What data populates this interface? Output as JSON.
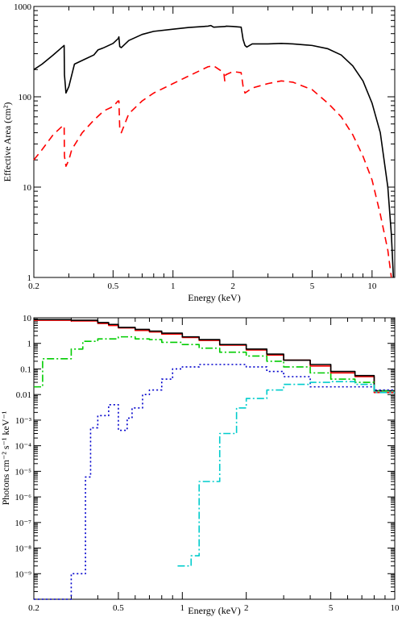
{
  "chart_data": [
    {
      "type": "line",
      "xscale": "log",
      "yscale": "log",
      "xlim": [
        0.2,
        13
      ],
      "ylim": [
        1,
        1000
      ],
      "xlabel": "Energy (keV)",
      "ylabel": "Effective Area (cm²)",
      "xticks": [
        0.2,
        0.5,
        1,
        2,
        5,
        10
      ],
      "xtick_labels": [
        "0.2",
        "0.5",
        "1",
        "2",
        "5",
        "10"
      ],
      "yticks": [
        1,
        10,
        100,
        1000
      ],
      "ytick_labels": [
        "1",
        "10",
        "100",
        "1000"
      ],
      "series": [
        {
          "color": "#000000",
          "dash": "solid",
          "points": [
            [
              0.2,
              200
            ],
            [
              0.22,
              230
            ],
            [
              0.25,
              290
            ],
            [
              0.28,
              360
            ],
            [
              0.284,
              370
            ],
            [
              0.285,
              175
            ],
            [
              0.29,
              110
            ],
            [
              0.3,
              130
            ],
            [
              0.32,
              230
            ],
            [
              0.36,
              260
            ],
            [
              0.4,
              290
            ],
            [
              0.42,
              330
            ],
            [
              0.45,
              350
            ],
            [
              0.5,
              390
            ],
            [
              0.53,
              440
            ],
            [
              0.535,
              460
            ],
            [
              0.54,
              360
            ],
            [
              0.55,
              350
            ],
            [
              0.6,
              420
            ],
            [
              0.7,
              490
            ],
            [
              0.8,
              530
            ],
            [
              1.0,
              560
            ],
            [
              1.2,
              585
            ],
            [
              1.5,
              605
            ],
            [
              1.55,
              615
            ],
            [
              1.6,
              590
            ],
            [
              1.83,
              600
            ],
            [
              1.85,
              605
            ],
            [
              2.0,
              600
            ],
            [
              2.2,
              590
            ],
            [
              2.25,
              430
            ],
            [
              2.3,
              370
            ],
            [
              2.35,
              355
            ],
            [
              2.5,
              385
            ],
            [
              3.0,
              385
            ],
            [
              3.5,
              390
            ],
            [
              4.0,
              385
            ],
            [
              5.0,
              370
            ],
            [
              6.0,
              340
            ],
            [
              7.0,
              290
            ],
            [
              8.0,
              220
            ],
            [
              9.0,
              150
            ],
            [
              10.0,
              85
            ],
            [
              11.0,
              40
            ],
            [
              12.0,
              10
            ],
            [
              12.5,
              3
            ],
            [
              12.8,
              1
            ]
          ]
        },
        {
          "color": "#ff0000",
          "dash": "dashed",
          "points": [
            [
              0.2,
              20
            ],
            [
              0.22,
              26
            ],
            [
              0.25,
              38
            ],
            [
              0.28,
              48
            ],
            [
              0.284,
              48
            ],
            [
              0.285,
              22
            ],
            [
              0.29,
              17
            ],
            [
              0.3,
              20
            ],
            [
              0.31,
              26
            ],
            [
              0.35,
              40
            ],
            [
              0.4,
              55
            ],
            [
              0.45,
              70
            ],
            [
              0.5,
              78
            ],
            [
              0.53,
              90
            ],
            [
              0.535,
              90
            ],
            [
              0.54,
              45
            ],
            [
              0.55,
              40
            ],
            [
              0.6,
              65
            ],
            [
              0.7,
              90
            ],
            [
              0.8,
              110
            ],
            [
              1.0,
              140
            ],
            [
              1.2,
              170
            ],
            [
              1.4,
              200
            ],
            [
              1.5,
              215
            ],
            [
              1.6,
              220
            ],
            [
              1.8,
              185
            ],
            [
              1.82,
              150
            ],
            [
              1.84,
              175
            ],
            [
              2.0,
              190
            ],
            [
              2.2,
              185
            ],
            [
              2.25,
              130
            ],
            [
              2.3,
              110
            ],
            [
              2.5,
              125
            ],
            [
              3.0,
              140
            ],
            [
              3.5,
              150
            ],
            [
              4.0,
              145
            ],
            [
              5.0,
              120
            ],
            [
              6.0,
              85
            ],
            [
              7.0,
              60
            ],
            [
              8.0,
              38
            ],
            [
              9.0,
              22
            ],
            [
              10.0,
              12
            ],
            [
              11.0,
              5
            ],
            [
              12.0,
              2
            ],
            [
              12.5,
              1
            ]
          ]
        }
      ]
    },
    {
      "type": "line",
      "xscale": "log",
      "yscale": "log",
      "xlim": [
        0.2,
        10
      ],
      "ylim": [
        1e-10,
        10
      ],
      "xlabel": "Energy (keV)",
      "ylabel": "Photons cm⁻² s⁻¹ keV⁻¹",
      "xticks": [
        0.2,
        0.5,
        1,
        2,
        5,
        10
      ],
      "xtick_labels": [
        "0.2",
        "0.5",
        "1",
        "2",
        "5",
        "10"
      ],
      "yticks": [
        10,
        1,
        0.1,
        0.01,
        0.001,
        0.0001,
        1e-05,
        1e-06,
        1e-07,
        1e-08,
        1e-09
      ],
      "ytick_labels": [
        "10",
        "1",
        "0.1",
        "0.01",
        "10⁻³",
        "10⁻⁴",
        "10⁻⁵",
        "10⁻⁶",
        "10⁻⁷",
        "10⁻⁸",
        "10⁻⁹"
      ],
      "series": [
        {
          "color": "#ff0000",
          "dash": "solid",
          "style": "step",
          "edges": [
            0.2,
            0.3,
            0.4,
            0.45,
            0.5,
            0.6,
            0.7,
            0.8,
            1.0,
            1.2,
            1.5,
            2.0,
            2.5,
            3.0,
            4.0,
            5.0,
            6.5,
            8.0,
            10.0
          ],
          "values": [
            8,
            7.5,
            6,
            5,
            4,
            3.2,
            2.8,
            2.3,
            1.7,
            1.3,
            0.85,
            0.55,
            0.35,
            0.22,
            0.13,
            0.07,
            0.05,
            0.012
          ]
        },
        {
          "color": "#000000",
          "dash": "solid",
          "style": "step",
          "edges": [
            0.2,
            0.3,
            0.4,
            0.45,
            0.5,
            0.6,
            0.7,
            0.8,
            1.0,
            1.2,
            1.5,
            2.0,
            2.5,
            3.0,
            4.0,
            5.0,
            6.5,
            8.0,
            10.0
          ],
          "values": [
            8.5,
            8,
            6.5,
            5.5,
            4.2,
            3.5,
            3,
            2.5,
            1.8,
            1.4,
            0.9,
            0.6,
            0.38,
            0.22,
            0.15,
            0.08,
            0.055,
            0.014
          ]
        },
        {
          "color": "#00cc00",
          "dash": "dashdot",
          "style": "step",
          "edges": [
            0.2,
            0.22,
            0.3,
            0.34,
            0.4,
            0.5,
            0.6,
            0.7,
            0.8,
            1.0,
            1.2,
            1.5,
            2.0,
            2.5,
            3.0,
            4.0,
            5.0,
            6.5,
            8.0,
            10.0
          ],
          "values": [
            0.02,
            0.25,
            0.6,
            1.2,
            1.5,
            1.8,
            1.5,
            1.4,
            1.1,
            0.9,
            0.65,
            0.45,
            0.32,
            0.2,
            0.12,
            0.07,
            0.04,
            0.03,
            0.014
          ]
        },
        {
          "color": "#0000cc",
          "dash": "dotted",
          "style": "step",
          "edges": [
            0.2,
            0.29,
            0.3,
            0.35,
            0.37,
            0.4,
            0.45,
            0.5,
            0.55,
            0.58,
            0.65,
            0.7,
            0.8,
            0.9,
            1.0,
            1.2,
            1.5,
            2.0,
            2.5,
            3.0,
            4.0,
            5.0,
            6.5,
            8.0,
            10.0
          ],
          "values": [
            1e-10,
            1e-10,
            1e-09,
            6e-06,
            0.0005,
            0.0015,
            0.004,
            0.0004,
            0.0012,
            0.003,
            0.01,
            0.015,
            0.04,
            0.1,
            0.12,
            0.15,
            0.15,
            0.12,
            0.08,
            0.05,
            0.02,
            0.02,
            0.02,
            0.015
          ]
        },
        {
          "color": "#00cccc",
          "dash": "dashdot",
          "style": "step",
          "edges": [
            0.95,
            1.1,
            1.2,
            1.5,
            1.8,
            2.0,
            2.5,
            3.0,
            4.0,
            5.0,
            6.5,
            8.0,
            10.0
          ],
          "values": [
            2e-09,
            5e-09,
            4e-06,
            0.0003,
            0.003,
            0.007,
            0.015,
            0.025,
            0.03,
            0.032,
            0.025,
            0.012
          ]
        }
      ]
    }
  ]
}
